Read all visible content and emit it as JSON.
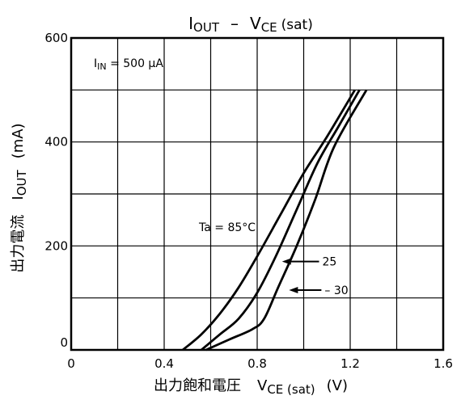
{
  "chart_data": {
    "type": "line",
    "title": {
      "main": "I",
      "main_sub": "OUT",
      "sep": "–",
      "v": "V",
      "v_sub": "CE",
      "v_tail": "(sat)"
    },
    "xlabel": {
      "jp": "出力飽和電圧",
      "v": "V",
      "v_sub": "CE (sat)",
      "unit": "(V)"
    },
    "ylabel": {
      "jp": "出力電流",
      "i": "I",
      "i_sub": "OUT",
      "unit": "(mA)"
    },
    "xlim": [
      0,
      1.6
    ],
    "ylim": [
      0,
      600
    ],
    "x_ticks": [
      0,
      0.4,
      0.8,
      1.2,
      1.6
    ],
    "x_tick_labels": [
      "0",
      "0.4",
      "0.8",
      "1.2",
      "1.6"
    ],
    "y_ticks": [
      0,
      200,
      400,
      600
    ],
    "y_tick_labels": [
      "0",
      "200",
      "400",
      "600"
    ],
    "x_grid_step": 0.2,
    "y_grid_step": 100,
    "grid": true,
    "condition": {
      "i": "I",
      "sub": "IN",
      "text": " = 500 μA"
    },
    "series": [
      {
        "name": "Ta = 85°C",
        "x": [
          0.48,
          0.56,
          0.64,
          0.72,
          0.8,
          0.9,
          1.0,
          1.1,
          1.22
        ],
        "y": [
          0,
          30,
          70,
          120,
          180,
          260,
          340,
          410,
          500
        ]
      },
      {
        "name": "25",
        "x": [
          0.56,
          0.64,
          0.72,
          0.8,
          0.88,
          0.97,
          1.06,
          1.15,
          1.24
        ],
        "y": [
          0,
          30,
          60,
          110,
          180,
          270,
          360,
          430,
          500
        ]
      },
      {
        "name": "– 30",
        "x": [
          0.58,
          0.68,
          0.78,
          0.83,
          0.89,
          0.97,
          1.05,
          1.13,
          1.27
        ],
        "y": [
          0,
          20,
          40,
          60,
          120,
          200,
          290,
          390,
          500
        ]
      }
    ],
    "annotations": [
      {
        "label": "Ta = 85°C",
        "series": 0
      },
      {
        "label": "25",
        "series": 1,
        "arrow_to": [
          0.9,
          170
        ],
        "text_at": [
          1.08,
          170
        ]
      },
      {
        "label": "– 30",
        "series": 2,
        "arrow_to": [
          0.93,
          115
        ],
        "text_at": [
          1.09,
          115
        ]
      }
    ]
  }
}
